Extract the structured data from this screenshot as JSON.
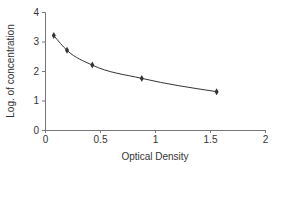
{
  "chart_data": {
    "type": "line",
    "x_label": "Optical Density",
    "y_label": "Log. of concentration",
    "x": [
      0.08,
      0.2,
      0.43,
      0.88,
      1.56
    ],
    "series": [
      {
        "values": [
          3.2,
          2.7,
          2.2,
          1.75,
          1.3
        ],
        "color": "#333333",
        "marker": "diamond"
      }
    ],
    "xlim": [
      0,
      2
    ],
    "xticks": [
      0,
      0.5,
      1,
      1.5,
      2
    ],
    "ylim": [
      0,
      4
    ],
    "yticks": [
      0,
      1,
      2,
      3,
      4
    ]
  }
}
